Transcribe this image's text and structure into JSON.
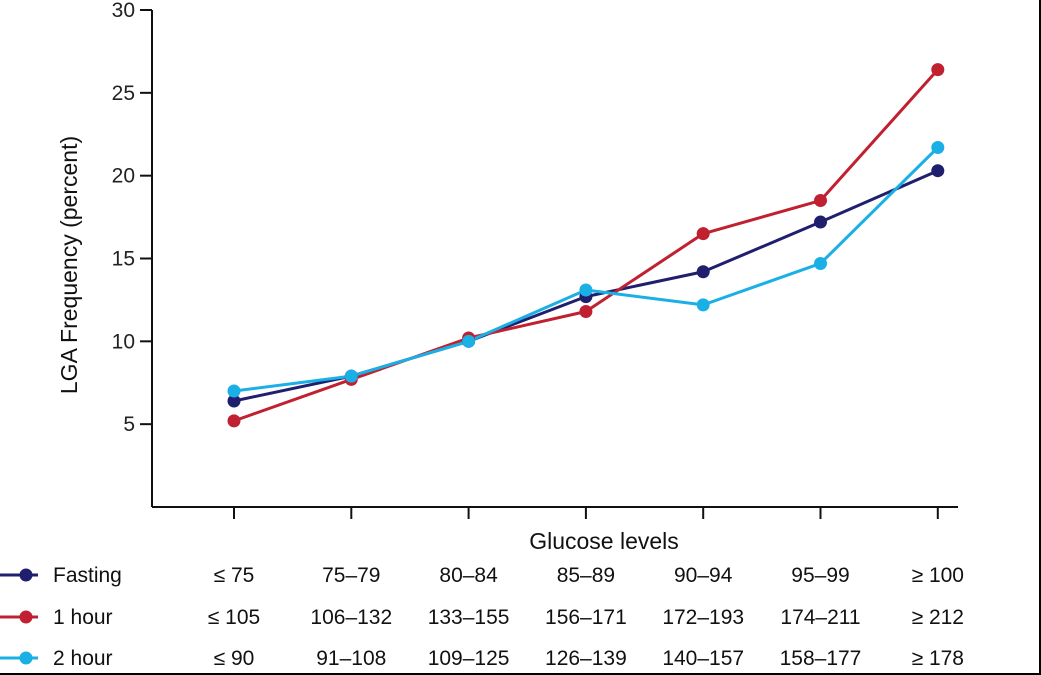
{
  "colors": {
    "axis": "#111111",
    "fasting": "#1f1f6e",
    "one_hour": "#c0202f",
    "two_hour": "#1ab0e6"
  },
  "chart_data": {
    "type": "line",
    "xlabel": "Glucose levels",
    "ylabel": "LGA Frequency (percent)",
    "ylim": [
      0,
      30
    ],
    "yticks": [
      5,
      10,
      15,
      20,
      25,
      30
    ],
    "grid": false,
    "legend_position": "bottom-left",
    "x": [
      1,
      2,
      3,
      4,
      5,
      6,
      7
    ],
    "series": [
      {
        "name": "Fasting",
        "color": "#1f1f6e",
        "categories": [
          "≤ 75",
          "75–79",
          "80–84",
          "85–89",
          "90–94",
          "95–99",
          "≥ 100"
        ],
        "values": [
          6.4,
          7.9,
          10.0,
          12.7,
          14.2,
          17.2,
          20.3
        ]
      },
      {
        "name": "1 hour",
        "color": "#c0202f",
        "categories": [
          "≤ 105",
          "106–132",
          "133–155",
          "156–171",
          "172–193",
          "174–211",
          "≥ 212"
        ],
        "values": [
          5.2,
          7.7,
          10.2,
          11.8,
          16.5,
          18.5,
          26.4
        ]
      },
      {
        "name": "2 hour",
        "color": "#1ab0e6",
        "categories": [
          "≤ 90",
          "91–108",
          "109–125",
          "126–139",
          "140–157",
          "158–177",
          "≥ 178"
        ],
        "values": [
          7.0,
          7.9,
          10.0,
          13.1,
          12.2,
          14.7,
          21.7
        ]
      }
    ]
  }
}
